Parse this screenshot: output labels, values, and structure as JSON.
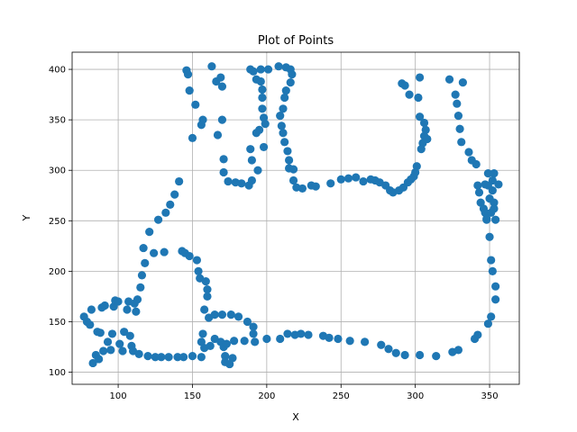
{
  "chart_data": {
    "type": "scatter",
    "title": "Plot of Points",
    "xlabel": "X",
    "ylabel": "Y",
    "xlim": [
      69,
      370
    ],
    "ylim": [
      88,
      417
    ],
    "xticks": [
      100,
      150,
      200,
      250,
      300,
      350
    ],
    "yticks": [
      100,
      150,
      200,
      250,
      300,
      350,
      400
    ],
    "grid": true,
    "marker_color": "#1f77b4",
    "points": [
      [
        77,
        155
      ],
      [
        79,
        150
      ],
      [
        81,
        147
      ],
      [
        82,
        162
      ],
      [
        83,
        109
      ],
      [
        85,
        117
      ],
      [
        87,
        113
      ],
      [
        86,
        140
      ],
      [
        88,
        139
      ],
      [
        89,
        164
      ],
      [
        90,
        121
      ],
      [
        91,
        166
      ],
      [
        93,
        130
      ],
      [
        95,
        122
      ],
      [
        96,
        138
      ],
      [
        97,
        165
      ],
      [
        98,
        171
      ],
      [
        100,
        170
      ],
      [
        101,
        128
      ],
      [
        103,
        121
      ],
      [
        104,
        140
      ],
      [
        106,
        162
      ],
      [
        107,
        170
      ],
      [
        108,
        136
      ],
      [
        109,
        126
      ],
      [
        110,
        121
      ],
      [
        111,
        168
      ],
      [
        112,
        160
      ],
      [
        113,
        172
      ],
      [
        114,
        118
      ],
      [
        115,
        184
      ],
      [
        116,
        196
      ],
      [
        117,
        223
      ],
      [
        118,
        208
      ],
      [
        120,
        116
      ],
      [
        121,
        239
      ],
      [
        124,
        218
      ],
      [
        125,
        115
      ],
      [
        127,
        251
      ],
      [
        129,
        115
      ],
      [
        131,
        219
      ],
      [
        132,
        258
      ],
      [
        134,
        115
      ],
      [
        135,
        266
      ],
      [
        138,
        276
      ],
      [
        140,
        115
      ],
      [
        141,
        289
      ],
      [
        143,
        220
      ],
      [
        144,
        115
      ],
      [
        145,
        218
      ],
      [
        146,
        399
      ],
      [
        147,
        395
      ],
      [
        148,
        379
      ],
      [
        148,
        215
      ],
      [
        150,
        332
      ],
      [
        150,
        116
      ],
      [
        152,
        365
      ],
      [
        153,
        211
      ],
      [
        154,
        200
      ],
      [
        155,
        193
      ],
      [
        156,
        130
      ],
      [
        156,
        115
      ],
      [
        156,
        345
      ],
      [
        157,
        138
      ],
      [
        157,
        350
      ],
      [
        158,
        162
      ],
      [
        158,
        124
      ],
      [
        159,
        190
      ],
      [
        160,
        182
      ],
      [
        160,
        175
      ],
      [
        161,
        154
      ],
      [
        162,
        126
      ],
      [
        163,
        403
      ],
      [
        165,
        157
      ],
      [
        165,
        133
      ],
      [
        166,
        388
      ],
      [
        167,
        335
      ],
      [
        169,
        392
      ],
      [
        169,
        130
      ],
      [
        170,
        157
      ],
      [
        170,
        383
      ],
      [
        170,
        350
      ],
      [
        171,
        125
      ],
      [
        171,
        311
      ],
      [
        171,
        298
      ],
      [
        172,
        116
      ],
      [
        172,
        110
      ],
      [
        173,
        128
      ],
      [
        174,
        289
      ],
      [
        175,
        108
      ],
      [
        176,
        157
      ],
      [
        177,
        114
      ],
      [
        178,
        131
      ],
      [
        179,
        288
      ],
      [
        181,
        155
      ],
      [
        183,
        287
      ],
      [
        185,
        131
      ],
      [
        187,
        150
      ],
      [
        188,
        285
      ],
      [
        189,
        400
      ],
      [
        189,
        321
      ],
      [
        190,
        310
      ],
      [
        190,
        290
      ],
      [
        191,
        145
      ],
      [
        191,
        138
      ],
      [
        191,
        398
      ],
      [
        192,
        130
      ],
      [
        193,
        337
      ],
      [
        193,
        390
      ],
      [
        194,
        300
      ],
      [
        195,
        340
      ],
      [
        196,
        400
      ],
      [
        196,
        388
      ],
      [
        197,
        380
      ],
      [
        197,
        372
      ],
      [
        197,
        361
      ],
      [
        198,
        352
      ],
      [
        198,
        323
      ],
      [
        199,
        346
      ],
      [
        200,
        133
      ],
      [
        201,
        400
      ],
      [
        208,
        403
      ],
      [
        209,
        354
      ],
      [
        209,
        133
      ],
      [
        210,
        344
      ],
      [
        211,
        337
      ],
      [
        211,
        361
      ],
      [
        212,
        372
      ],
      [
        212,
        328
      ],
      [
        213,
        402
      ],
      [
        213,
        379
      ],
      [
        214,
        319
      ],
      [
        214,
        138
      ],
      [
        215,
        310
      ],
      [
        215,
        302
      ],
      [
        216,
        387
      ],
      [
        216,
        400
      ],
      [
        217,
        395
      ],
      [
        218,
        290
      ],
      [
        218,
        301
      ],
      [
        219,
        137
      ],
      [
        220,
        283
      ],
      [
        223,
        138
      ],
      [
        224,
        282
      ],
      [
        228,
        137
      ],
      [
        230,
        285
      ],
      [
        233,
        284
      ],
      [
        238,
        136
      ],
      [
        242,
        134
      ],
      [
        243,
        287
      ],
      [
        248,
        133
      ],
      [
        250,
        291
      ],
      [
        255,
        292
      ],
      [
        256,
        131
      ],
      [
        260,
        293
      ],
      [
        265,
        289
      ],
      [
        266,
        130
      ],
      [
        270,
        291
      ],
      [
        273,
        290
      ],
      [
        276,
        288
      ],
      [
        277,
        127
      ],
      [
        280,
        285
      ],
      [
        282,
        123
      ],
      [
        283,
        280
      ],
      [
        285,
        278
      ],
      [
        287,
        119
      ],
      [
        289,
        280
      ],
      [
        291,
        386
      ],
      [
        292,
        283
      ],
      [
        293,
        384
      ],
      [
        293,
        117
      ],
      [
        295,
        288
      ],
      [
        296,
        375
      ],
      [
        297,
        291
      ],
      [
        299,
        294
      ],
      [
        300,
        298
      ],
      [
        301,
        304
      ],
      [
        302,
        372
      ],
      [
        303,
        392
      ],
      [
        303,
        353
      ],
      [
        303,
        117
      ],
      [
        304,
        321
      ],
      [
        305,
        327
      ],
      [
        306,
        347
      ],
      [
        306,
        334
      ],
      [
        307,
        340
      ],
      [
        308,
        331
      ],
      [
        314,
        116
      ],
      [
        323,
        390
      ],
      [
        325,
        120
      ],
      [
        327,
        375
      ],
      [
        328,
        366
      ],
      [
        329,
        122
      ],
      [
        329,
        354
      ],
      [
        330,
        341
      ],
      [
        331,
        328
      ],
      [
        332,
        387
      ],
      [
        336,
        318
      ],
      [
        338,
        310
      ],
      [
        340,
        133
      ],
      [
        341,
        306
      ],
      [
        342,
        285
      ],
      [
        342,
        137
      ],
      [
        343,
        278
      ],
      [
        344,
        268
      ],
      [
        346,
        262
      ],
      [
        347,
        258
      ],
      [
        348,
        251
      ],
      [
        349,
        285
      ],
      [
        349,
        297
      ],
      [
        349,
        148
      ],
      [
        350,
        272
      ],
      [
        350,
        234
      ],
      [
        351,
        211
      ],
      [
        351,
        258
      ],
      [
        351,
        155
      ],
      [
        352,
        200
      ],
      [
        352,
        280
      ],
      [
        353,
        268
      ],
      [
        353,
        262
      ],
      [
        353,
        297
      ],
      [
        354,
        185
      ],
      [
        354,
        172
      ],
      [
        354,
        251
      ],
      [
        356,
        286
      ],
      [
        348,
        252
      ],
      [
        352,
        290
      ],
      [
        347,
        286
      ]
    ]
  }
}
